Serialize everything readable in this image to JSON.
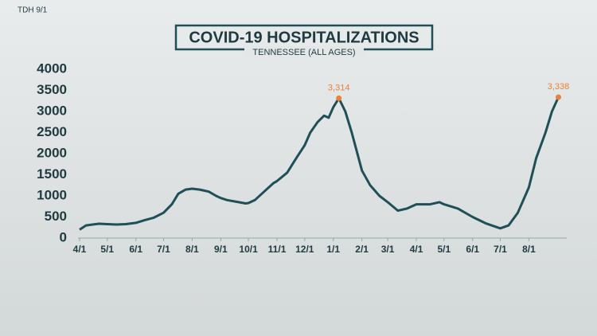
{
  "source": "TDH 9/1",
  "chart_data": {
    "type": "line",
    "title": "COVID-19 HOSPITALIZATIONS",
    "subtitle": "TENNESSEE (ALL AGES)",
    "x": [
      0,
      7,
      14,
      21,
      30,
      40,
      50,
      61,
      70,
      80,
      91,
      100,
      107,
      115,
      122,
      130,
      140,
      148,
      153,
      160,
      170,
      180,
      183,
      190,
      200,
      210,
      214,
      225,
      235,
      244,
      250,
      258,
      265,
      270,
      275,
      281,
      288,
      295,
      306,
      315,
      325,
      334,
      345,
      355,
      365,
      380,
      390,
      395,
      410,
      426,
      440,
      456,
      465,
      475,
      487,
      495,
      505,
      512,
      519
    ],
    "values": [
      200,
      300,
      320,
      340,
      330,
      320,
      330,
      360,
      420,
      480,
      600,
      800,
      1050,
      1150,
      1170,
      1150,
      1100,
      1000,
      950,
      900,
      860,
      820,
      830,
      900,
      1100,
      1300,
      1350,
      1550,
      1900,
      2200,
      2500,
      2750,
      2900,
      2850,
      3100,
      3314,
      3000,
      2500,
      1600,
      1250,
      1000,
      850,
      650,
      700,
      800,
      800,
      850,
      800,
      700,
      500,
      350,
      230,
      300,
      600,
      1200,
      1900,
      2500,
      3000,
      3338
    ],
    "color": "#1f4f57",
    "xlim": [
      0,
      522
    ],
    "xticks": [
      {
        "value": 0,
        "label": "4/1"
      },
      {
        "value": 30,
        "label": "5/1"
      },
      {
        "value": 61,
        "label": "6/1"
      },
      {
        "value": 91,
        "label": "7/1"
      },
      {
        "value": 122,
        "label": "8/1"
      },
      {
        "value": 153,
        "label": "9/1"
      },
      {
        "value": 183,
        "label": "10/1"
      },
      {
        "value": 214,
        "label": "11/1"
      },
      {
        "value": 244,
        "label": "12/1"
      },
      {
        "value": 275,
        "label": "1/1"
      },
      {
        "value": 306,
        "label": "2/1"
      },
      {
        "value": 334,
        "label": "3/1"
      },
      {
        "value": 365,
        "label": "4/1"
      },
      {
        "value": 395,
        "label": "5/1"
      },
      {
        "value": 426,
        "label": "6/1"
      },
      {
        "value": 456,
        "label": "7/1"
      },
      {
        "value": 487,
        "label": "8/1"
      }
    ],
    "ylim": [
      0,
      4000
    ],
    "yticks": [
      0,
      500,
      1000,
      1500,
      2000,
      2500,
      3000,
      3500,
      4000
    ],
    "annotations": [
      {
        "text": "3,314",
        "x": 281,
        "y": 3314
      },
      {
        "text": "3,338",
        "x": 519,
        "y": 3338
      }
    ],
    "annotation_color": "#e8823a"
  }
}
